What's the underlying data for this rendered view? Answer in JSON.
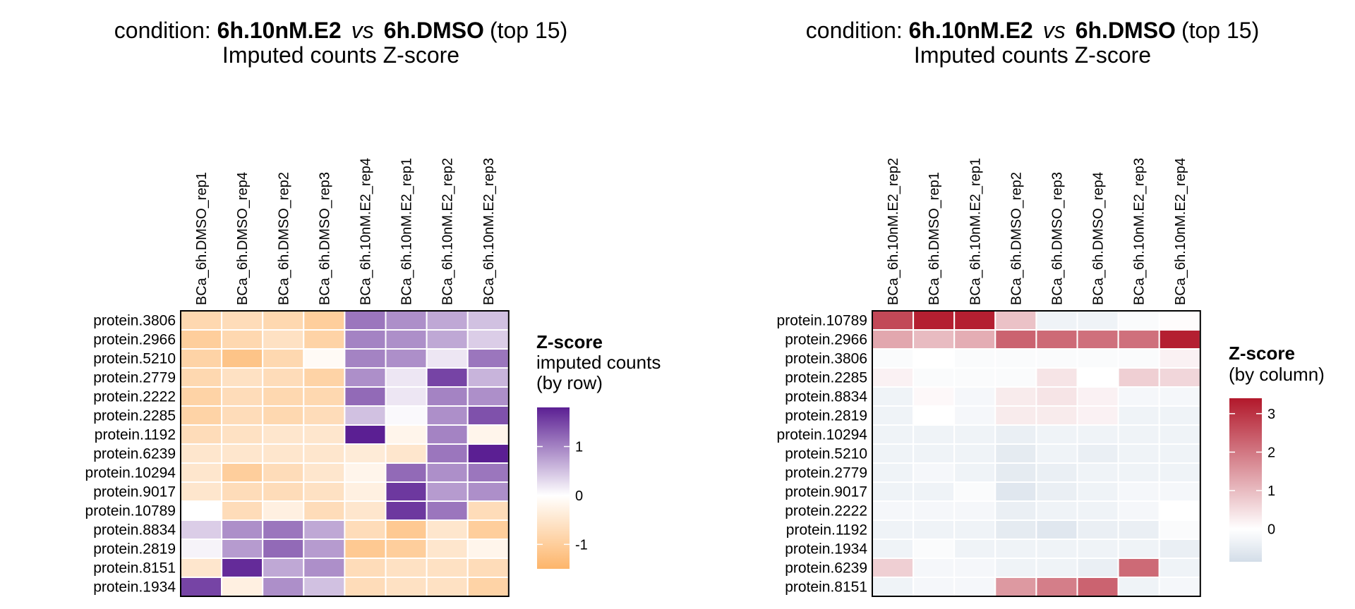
{
  "chart_data": [
    {
      "type": "heatmap",
      "title": {
        "prefix": "condition: ",
        "group1": "6h.10nM.E2",
        "vs": "vs",
        "group2": "6h.DMSO",
        "suffix": "(top 15)"
      },
      "subtitle": "Imputed counts Z-score",
      "legend": {
        "title_bold": "Z-score",
        "title_lines": [
          "imputed counts",
          "(by row)"
        ],
        "ticks": [
          "1",
          "0",
          "-1"
        ],
        "range": [
          -1.5,
          1.8
        ],
        "colors": {
          "low": "#fdb56a",
          "mid": "#ffffff",
          "high": "#5b1f93"
        }
      },
      "columns": [
        "BCa_6h.DMSO_rep1",
        "BCa_6h.DMSO_rep4",
        "BCa_6h.DMSO_rep2",
        "BCa_6h.DMSO_rep3",
        "BCa_6h.10nM.E2_rep4",
        "BCa_6h.10nM.E2_rep1",
        "BCa_6h.10nM.E2_rep2",
        "BCa_6h.10nM.E2_rep3"
      ],
      "rows": [
        "protein.3806",
        "protein.2966",
        "protein.5210",
        "protein.2779",
        "protein.2222",
        "protein.2285",
        "protein.1192",
        "protein.6239",
        "protein.10294",
        "protein.9017",
        "protein.10789",
        "protein.8834",
        "protein.2819",
        "protein.8151",
        "protein.1934"
      ],
      "values": [
        [
          -0.8,
          -0.7,
          -0.8,
          -1.0,
          1.1,
          0.9,
          0.7,
          0.5
        ],
        [
          -1.0,
          -0.8,
          -0.6,
          -0.9,
          1.0,
          0.9,
          0.7,
          0.4
        ],
        [
          -0.9,
          -1.2,
          -0.8,
          -0.1,
          1.0,
          0.9,
          0.2,
          1.1
        ],
        [
          -0.8,
          -0.6,
          -0.7,
          -0.9,
          0.9,
          0.2,
          1.5,
          0.6
        ],
        [
          -0.9,
          -0.7,
          -0.8,
          -0.8,
          1.2,
          0.2,
          1.0,
          0.9
        ],
        [
          -0.9,
          -0.7,
          -0.8,
          -0.7,
          0.5,
          0.05,
          0.9,
          1.4
        ],
        [
          -0.7,
          -0.6,
          -0.5,
          -0.5,
          1.8,
          -0.2,
          1.0,
          -0.2
        ],
        [
          -0.5,
          -0.5,
          -0.5,
          -0.5,
          -0.4,
          -0.5,
          1.1,
          1.8
        ],
        [
          -0.5,
          -1.0,
          -0.7,
          -0.5,
          -0.2,
          1.2,
          0.9,
          1.1
        ],
        [
          -0.5,
          -0.7,
          -0.7,
          -0.6,
          -0.3,
          1.6,
          0.8,
          0.9
        ],
        [
          0.0,
          -0.7,
          -0.3,
          -0.7,
          -0.5,
          1.6,
          1.1,
          -0.7
        ],
        [
          0.4,
          0.9,
          1.1,
          0.7,
          -0.7,
          -1.1,
          -0.5,
          -1.0
        ],
        [
          0.1,
          0.8,
          1.2,
          0.8,
          -1.1,
          -1.0,
          -0.5,
          -0.2
        ],
        [
          -0.5,
          1.7,
          0.7,
          0.9,
          -0.7,
          -0.6,
          -0.6,
          -0.7
        ],
        [
          1.5,
          -0.3,
          0.9,
          0.5,
          -0.7,
          -0.6,
          -0.6,
          -0.9
        ]
      ]
    },
    {
      "type": "heatmap",
      "title": {
        "prefix": "condition: ",
        "group1": "6h.10nM.E2",
        "vs": "vs",
        "group2": "6h.DMSO",
        "suffix": "(top 15)"
      },
      "subtitle": "Imputed counts Z-score",
      "legend": {
        "title_bold": "Z-score",
        "title_lines": [
          "(by column)"
        ],
        "ticks": [
          "3",
          "2",
          "1",
          "0"
        ],
        "range": [
          -0.85,
          3.4
        ],
        "colors": {
          "low": "#d3dde8",
          "mid": "#ffffff",
          "high": "#b2182b"
        }
      },
      "columns": [
        "BCa_6h.10nM.E2_rep2",
        "BCa_6h.DMSO_rep1",
        "BCa_6h.10nM.E2_rep1",
        "BCa_6h.DMSO_rep2",
        "BCa_6h.DMSO_rep3",
        "BCa_6h.DMSO_rep4",
        "BCa_6h.10nM.E2_rep3",
        "BCa_6h.10nM.E2_rep4"
      ],
      "rows": [
        "protein.10789",
        "protein.2966",
        "protein.3806",
        "protein.2285",
        "protein.8834",
        "protein.2819",
        "protein.10294",
        "protein.5210",
        "protein.2779",
        "protein.9017",
        "protein.2222",
        "protein.1192",
        "protein.1934",
        "protein.6239",
        "protein.8151"
      ],
      "values": [
        [
          2.7,
          3.3,
          3.3,
          0.9,
          -0.3,
          -0.3,
          -0.1,
          0.05
        ],
        [
          1.3,
          1.0,
          1.2,
          2.3,
          2.2,
          2.1,
          2.1,
          3.3
        ],
        [
          -0.1,
          0.0,
          -0.1,
          -0.1,
          -0.1,
          -0.1,
          -0.1,
          0.2
        ],
        [
          0.2,
          -0.1,
          -0.1,
          -0.1,
          0.4,
          0.0,
          0.7,
          0.6
        ],
        [
          -0.3,
          0.1,
          -0.2,
          0.3,
          0.4,
          0.2,
          -0.2,
          -0.2
        ],
        [
          -0.3,
          0.0,
          -0.2,
          0.3,
          0.3,
          0.2,
          -0.3,
          -0.3
        ],
        [
          -0.3,
          -0.3,
          -0.3,
          -0.4,
          -0.3,
          -0.3,
          -0.3,
          -0.3
        ],
        [
          -0.3,
          -0.3,
          -0.3,
          -0.5,
          -0.3,
          -0.4,
          -0.3,
          -0.3
        ],
        [
          -0.3,
          -0.2,
          -0.3,
          -0.5,
          -0.4,
          -0.3,
          -0.3,
          -0.3
        ],
        [
          -0.3,
          -0.3,
          -0.1,
          -0.6,
          -0.4,
          -0.3,
          -0.2,
          -0.2
        ],
        [
          -0.2,
          -0.2,
          -0.2,
          -0.4,
          -0.3,
          -0.3,
          -0.2,
          0.0
        ],
        [
          -0.3,
          -0.3,
          -0.3,
          -0.5,
          -0.6,
          -0.4,
          -0.4,
          -0.1
        ],
        [
          -0.3,
          -0.1,
          -0.3,
          -0.3,
          -0.3,
          -0.3,
          -0.3,
          -0.4
        ],
        [
          0.7,
          -0.2,
          -0.2,
          -0.3,
          -0.3,
          -0.4,
          2.2,
          -0.3
        ],
        [
          -0.3,
          -0.2,
          -0.2,
          1.5,
          1.9,
          2.3,
          -0.3,
          -0.2
        ]
      ]
    }
  ]
}
